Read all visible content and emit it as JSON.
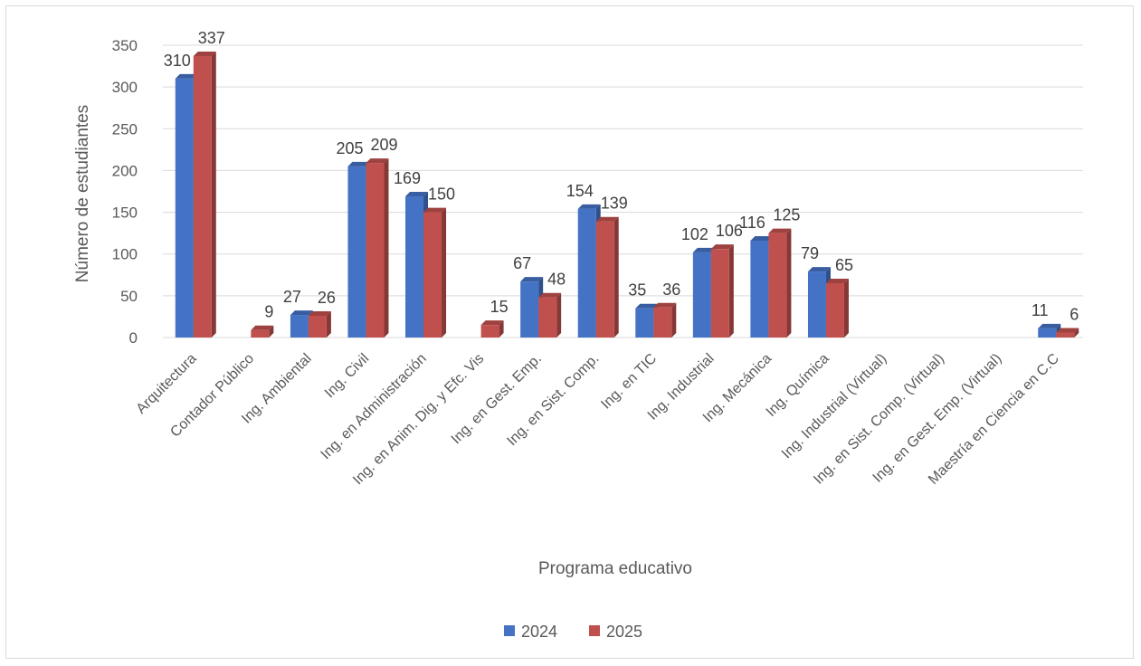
{
  "chart_data": {
    "type": "bar",
    "title": "",
    "xlabel": "Programa educativo",
    "ylabel": "Número de estudiantes",
    "ylim": [
      0,
      350
    ],
    "yticks": [
      0,
      50,
      100,
      150,
      200,
      250,
      300,
      350
    ],
    "grid": true,
    "legend_position": "bottom",
    "categories": [
      "Arquitectura",
      "Contador Público",
      "Ing. Ambiental",
      "Ing. Civil",
      "Ing. en Administración",
      "Ing. en Anim. Dig. y Efc. Vis",
      "Ing. en Gest. Emp.",
      "Ing. en Sist. Comp.",
      "Ing. en TIC",
      "Ing. Industrial",
      "Ing. Mecánica",
      "Ing. Química",
      "Ing. Industrial (Virtual)",
      "Ing. en Sist. Comp. (Virtual)",
      "Ing. en Gest. Emp. (Virtual)",
      "Maestría en Ciencia en C.C"
    ],
    "series": [
      {
        "name": "2024",
        "color": "#4472c4",
        "values": [
          310,
          null,
          27,
          205,
          169,
          null,
          67,
          154,
          35,
          102,
          116,
          79,
          null,
          null,
          null,
          11
        ]
      },
      {
        "name": "2025",
        "color": "#c0504d",
        "values": [
          337,
          9,
          26,
          209,
          150,
          15,
          48,
          139,
          36,
          106,
          125,
          65,
          null,
          null,
          null,
          6
        ]
      }
    ]
  }
}
